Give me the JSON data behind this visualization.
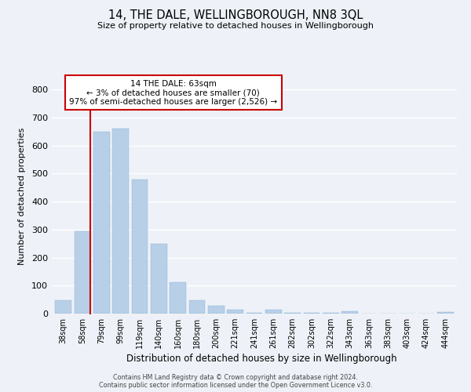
{
  "title": "14, THE DALE, WELLINGBOROUGH, NN8 3QL",
  "subtitle": "Size of property relative to detached houses in Wellingborough",
  "xlabel": "Distribution of detached houses by size in Wellingborough",
  "ylabel": "Number of detached properties",
  "bar_labels": [
    "38sqm",
    "58sqm",
    "79sqm",
    "99sqm",
    "119sqm",
    "140sqm",
    "160sqm",
    "180sqm",
    "200sqm",
    "221sqm",
    "241sqm",
    "261sqm",
    "282sqm",
    "302sqm",
    "322sqm",
    "343sqm",
    "363sqm",
    "383sqm",
    "403sqm",
    "424sqm",
    "444sqm"
  ],
  "bar_values": [
    48,
    295,
    650,
    660,
    478,
    250,
    113,
    48,
    28,
    15,
    2,
    13,
    3,
    3,
    2,
    8,
    1,
    1,
    0,
    0,
    5
  ],
  "bar_color": "#b8cfe8",
  "highlight_line_index": 1,
  "highlight_line_color": "#cc0000",
  "ylim": [
    0,
    840
  ],
  "yticks": [
    0,
    100,
    200,
    300,
    400,
    500,
    600,
    700,
    800
  ],
  "annotation_title": "14 THE DALE: 63sqm",
  "annotation_line1": "← 3% of detached houses are smaller (70)",
  "annotation_line2": "97% of semi-detached houses are larger (2,526) →",
  "footer_line1": "Contains HM Land Registry data © Crown copyright and database right 2024.",
  "footer_line2": "Contains public sector information licensed under the Open Government Licence v3.0.",
  "background_color": "#eef2f8",
  "plot_bg_color": "#eef2f8",
  "grid_color": "#ffffff"
}
